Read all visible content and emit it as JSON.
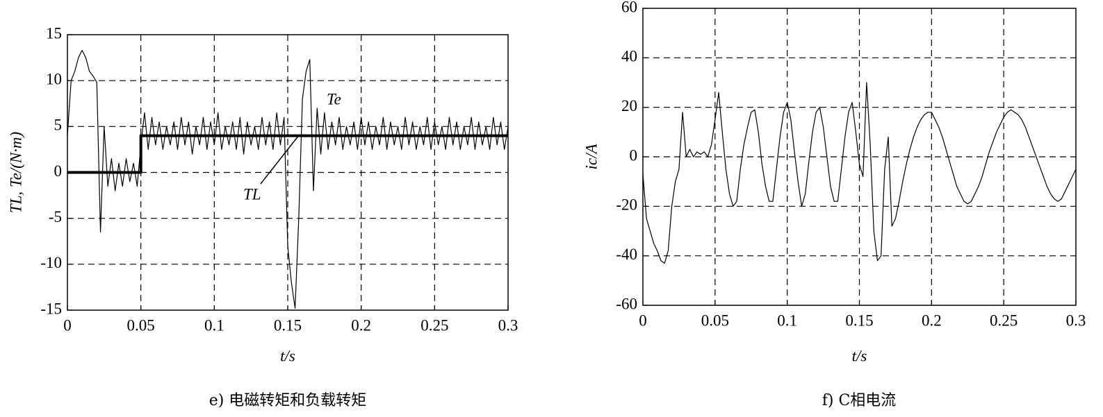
{
  "chart_data": [
    {
      "type": "line",
      "x_label": "t/s",
      "y_label": "TL, Te/(N·m)",
      "caption": "e) 电磁转矩和负载转矩",
      "xlim": [
        0,
        0.3
      ],
      "ylim": [
        -15,
        15
      ],
      "xticks": [
        0,
        0.05,
        0.1,
        0.15,
        0.2,
        0.25,
        0.3
      ],
      "yticks": [
        -15,
        -10,
        -5,
        0,
        5,
        10,
        15
      ],
      "grid": true,
      "series": [
        {
          "name": "Te",
          "color": "#000000",
          "x": [
            0,
            0.0025,
            0.005,
            0.0075,
            0.01,
            0.0125,
            0.015,
            0.0175,
            0.02,
            0.0225,
            0.025,
            0.0275,
            0.03,
            0.0325,
            0.035,
            0.0375,
            0.04,
            0.0425,
            0.045,
            0.0475,
            0.05,
            0.0525,
            0.055,
            0.0575,
            0.06,
            0.0625,
            0.065,
            0.0675,
            0.07,
            0.0725,
            0.075,
            0.0775,
            0.08,
            0.0825,
            0.085,
            0.0875,
            0.09,
            0.0925,
            0.095,
            0.0975,
            0.1,
            0.1025,
            0.105,
            0.1075,
            0.11,
            0.1125,
            0.115,
            0.1175,
            0.12,
            0.1225,
            0.125,
            0.1275,
            0.13,
            0.1325,
            0.135,
            0.1375,
            0.14,
            0.1425,
            0.145,
            0.1475,
            0.15,
            0.1525,
            0.155,
            0.1575,
            0.16,
            0.1625,
            0.165,
            0.1675,
            0.17,
            0.1725,
            0.175,
            0.1775,
            0.18,
            0.1825,
            0.185,
            0.1875,
            0.19,
            0.1925,
            0.195,
            0.1975,
            0.2,
            0.2025,
            0.205,
            0.2075,
            0.21,
            0.2125,
            0.215,
            0.2175,
            0.22,
            0.2225,
            0.225,
            0.2275,
            0.23,
            0.2325,
            0.235,
            0.2375,
            0.24,
            0.2425,
            0.245,
            0.2475,
            0.25,
            0.2525,
            0.255,
            0.2575,
            0.26,
            0.2625,
            0.265,
            0.2675,
            0.27,
            0.2725,
            0.275,
            0.2775,
            0.28,
            0.2825,
            0.285,
            0.2875,
            0.29,
            0.2925,
            0.295,
            0.2975,
            0.3
          ],
          "values": [
            4,
            10,
            11,
            12.5,
            13.3,
            12.5,
            11,
            10.5,
            9.8,
            -6.5,
            5,
            -1.5,
            1.5,
            -2,
            1,
            -1.5,
            1.5,
            -1,
            1,
            -1.5,
            3,
            6.5,
            2.5,
            6,
            3,
            5.5,
            2.5,
            5,
            3,
            5.5,
            2.5,
            6,
            3,
            5.5,
            2,
            5,
            3,
            6,
            2.5,
            5.5,
            3,
            6.5,
            2.5,
            5,
            3,
            5.5,
            2.5,
            6,
            2,
            5.5,
            3,
            5,
            2.5,
            6,
            3,
            5.5,
            2.5,
            6.5,
            3,
            6,
            -8,
            -12,
            -14.8,
            -5,
            8,
            11,
            12.3,
            -2,
            7,
            2,
            6.5,
            2.5,
            5.5,
            3,
            6,
            2.5,
            5,
            3,
            5.5,
            2.5,
            6,
            3,
            5.5,
            2.5,
            5,
            3,
            6,
            2.5,
            5.5,
            3,
            5,
            2.5,
            6,
            3,
            5.5,
            2.5,
            5,
            3,
            6,
            2.5,
            5.5,
            3,
            5,
            2.5,
            6,
            3,
            5.5,
            2.5,
            5,
            3,
            6,
            2.5,
            5.5,
            3,
            5,
            2.5,
            6,
            3,
            5.5,
            2.5,
            5
          ]
        },
        {
          "name": "TL",
          "color": "#000000",
          "x": [
            0,
            0.05,
            0.05,
            0.3
          ],
          "values": [
            0,
            0,
            4,
            4
          ]
        }
      ]
    },
    {
      "type": "line",
      "x_label": "t/s",
      "y_label": "ic/A",
      "caption": "f) C相电流",
      "xlim": [
        0,
        0.3
      ],
      "ylim": [
        -60,
        60
      ],
      "xticks": [
        0,
        0.05,
        0.1,
        0.15,
        0.2,
        0.25,
        0.3
      ],
      "yticks": [
        -60,
        -40,
        -20,
        0,
        20,
        40,
        60
      ],
      "grid": true,
      "series": [
        {
          "color": "#000000",
          "x": [
            0,
            0.0025,
            0.005,
            0.0075,
            0.01,
            0.0125,
            0.015,
            0.0175,
            0.02,
            0.0225,
            0.025,
            0.0275,
            0.03,
            0.0325,
            0.035,
            0.0375,
            0.04,
            0.0425,
            0.045,
            0.0475,
            0.05,
            0.0525,
            0.055,
            0.0575,
            0.06,
            0.0625,
            0.065,
            0.0675,
            0.07,
            0.0725,
            0.075,
            0.0775,
            0.08,
            0.0825,
            0.085,
            0.0875,
            0.09,
            0.0925,
            0.095,
            0.0975,
            0.1,
            0.1025,
            0.105,
            0.1075,
            0.11,
            0.1125,
            0.115,
            0.1175,
            0.12,
            0.1225,
            0.125,
            0.1275,
            0.13,
            0.1325,
            0.135,
            0.1375,
            0.14,
            0.1425,
            0.145,
            0.1475,
            0.15,
            0.1525,
            0.155,
            0.1575,
            0.16,
            0.1625,
            0.165,
            0.1675,
            0.17,
            0.1725,
            0.175,
            0.1775,
            0.18,
            0.1825,
            0.185,
            0.1875,
            0.19,
            0.1925,
            0.195,
            0.1975,
            0.2,
            0.2025,
            0.205,
            0.2075,
            0.21,
            0.2125,
            0.215,
            0.2175,
            0.22,
            0.2225,
            0.225,
            0.2275,
            0.23,
            0.2325,
            0.235,
            0.2375,
            0.24,
            0.2425,
            0.245,
            0.2475,
            0.25,
            0.2525,
            0.255,
            0.2575,
            0.26,
            0.2625,
            0.265,
            0.2675,
            0.27,
            0.2725,
            0.275,
            0.2775,
            0.28,
            0.2825,
            0.285,
            0.2875,
            0.29,
            0.2925,
            0.295,
            0.2975,
            0.3
          ],
          "values": [
            -7,
            -25,
            -30,
            -35,
            -38,
            -42,
            -43,
            -38,
            -20,
            -10,
            -5,
            18,
            0,
            3,
            0,
            2,
            1,
            2,
            0,
            5,
            15,
            26,
            10,
            -5,
            -15,
            -20,
            -18,
            -5,
            5,
            12,
            18,
            19,
            10,
            -3,
            -12,
            -18,
            -18,
            -5,
            8,
            18,
            22,
            15,
            2,
            -10,
            -20,
            -15,
            -2,
            10,
            18,
            20,
            12,
            0,
            -12,
            -18,
            -18,
            -5,
            8,
            18,
            22,
            10,
            -3,
            -8,
            30,
            5,
            -30,
            -42,
            -40,
            -5,
            8,
            -28,
            -25,
            -18,
            -10,
            -3,
            3,
            8,
            12,
            15,
            17,
            18,
            18,
            15,
            12,
            8,
            3,
            -2,
            -7,
            -12,
            -15,
            -18,
            -19,
            -18,
            -15,
            -12,
            -8,
            -3,
            2,
            6,
            10,
            13,
            16,
            18,
            19,
            18,
            17,
            15,
            12,
            8,
            4,
            0,
            -4,
            -8,
            -12,
            -15,
            -17,
            -18,
            -17,
            -14,
            -11,
            -8,
            -5
          ]
        }
      ]
    }
  ]
}
